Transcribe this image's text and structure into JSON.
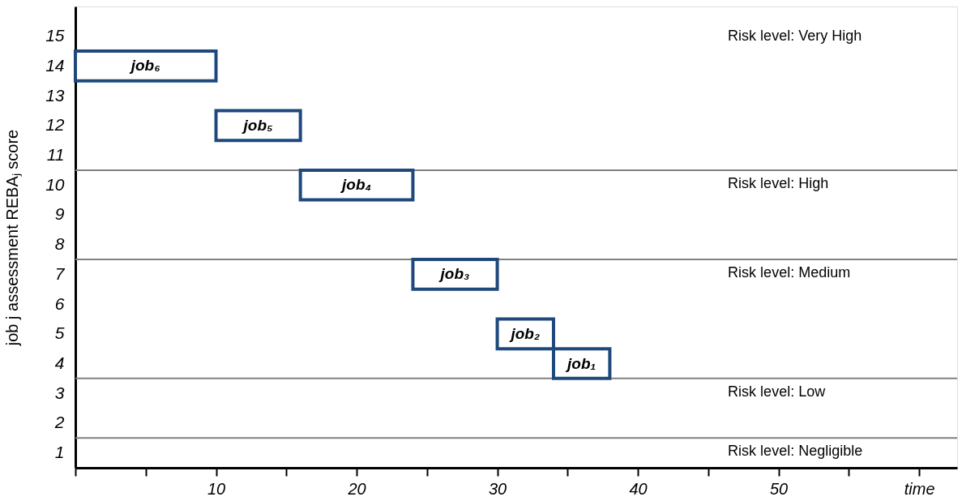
{
  "chart_data": {
    "type": "bar",
    "orientation": "horizontal",
    "ylabel": "job j assessment REBAⱼ score",
    "x": [
      14,
      12,
      10,
      7,
      5,
      4
    ],
    "series": [
      {
        "color": "#1f497d",
        "base": [
          0,
          10,
          16,
          24,
          30,
          34
        ],
        "values": [
          10,
          6,
          8,
          6,
          4,
          4
        ]
      }
    ],
    "value_labels": [
      "job₆",
      "job₅",
      "job₄",
      "job₃",
      "job₂",
      "job₁"
    ],
    "xlim": [
      0,
      62.7
    ],
    "xticks": [
      {
        "value": 0,
        "label": null
      },
      {
        "value": 5,
        "label": null
      },
      10,
      {
        "value": 15,
        "label": null
      },
      20,
      {
        "value": 25,
        "label": null
      },
      30,
      {
        "value": 35,
        "label": null
      },
      40,
      {
        "value": 45,
        "label": null
      },
      50,
      {
        "value": 55,
        "label": null
      },
      {
        "value": 60,
        "label": "time"
      }
    ],
    "ylim": [
      0.5,
      16
    ],
    "yticks": [
      1,
      2,
      3,
      4,
      5,
      6,
      7,
      8,
      9,
      10,
      11,
      12,
      13,
      14,
      15
    ],
    "ref_lines": [
      {
        "axis": "y",
        "value": 10.5,
        "color": "#808080"
      },
      {
        "axis": "y",
        "value": 7.5,
        "color": "#808080"
      },
      {
        "axis": "y",
        "value": 3.5,
        "color": "#808080"
      },
      {
        "axis": "y",
        "value": 1.5,
        "color": "#808080"
      }
    ],
    "annotations": [
      "Risk level: Very High",
      "Risk level: High",
      "Risk level: Medium",
      "Risk level: Low",
      "Risk level: Negligible"
    ],
    "grid": false
  }
}
